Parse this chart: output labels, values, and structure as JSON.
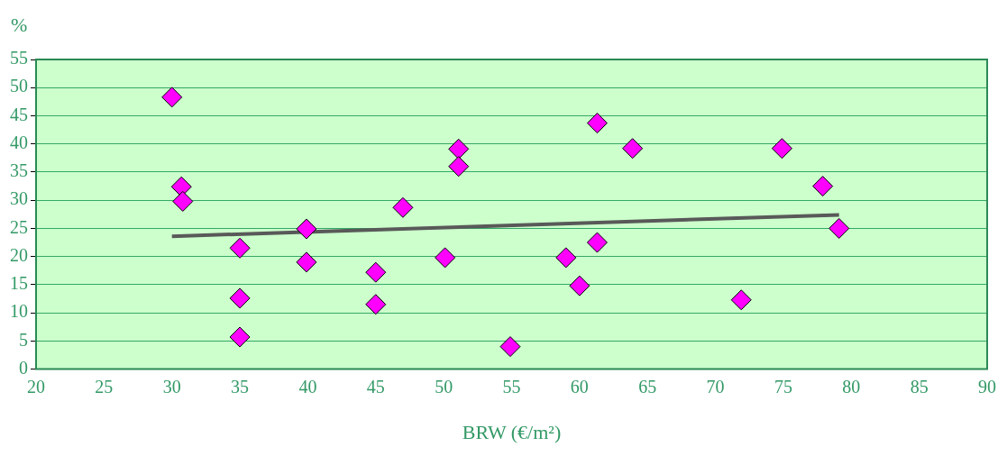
{
  "chart_data": {
    "type": "scatter",
    "xlabel": "BRW (€/m²)",
    "ylabel": "%",
    "xlim": [
      20,
      90
    ],
    "xticks": [
      20,
      25,
      30,
      35,
      40,
      45,
      50,
      55,
      60,
      65,
      70,
      75,
      80,
      85,
      90
    ],
    "ylim": [
      0,
      55
    ],
    "yticks": [
      0,
      5,
      10,
      15,
      20,
      25,
      30,
      35,
      40,
      45,
      50,
      55
    ],
    "grid": "y",
    "marker": "diamond",
    "series": [
      {
        "type": "scatter",
        "color": "#ff00ff",
        "x": [
          30.0,
          30.7,
          30.8,
          35.0,
          35.0,
          35.0,
          39.9,
          39.9,
          45.0,
          45.0,
          47.0,
          50.1,
          51.1,
          51.1,
          54.9,
          59.0,
          60.0,
          61.3,
          61.3,
          63.9,
          71.9,
          74.9,
          77.9,
          79.1
        ],
        "values": [
          48.3,
          32.4,
          29.8,
          21.5,
          12.6,
          5.7,
          24.9,
          19.0,
          17.2,
          11.5,
          28.7,
          19.8,
          39.1,
          36.0,
          4.0,
          19.8,
          14.8,
          43.7,
          22.5,
          39.2,
          12.3,
          39.2,
          32.5,
          25.0
        ]
      },
      {
        "type": "line",
        "color": "#595959",
        "x": [
          30.0,
          79.1
        ],
        "values": [
          23.6,
          27.4
        ],
        "marker": "none"
      }
    ]
  }
}
